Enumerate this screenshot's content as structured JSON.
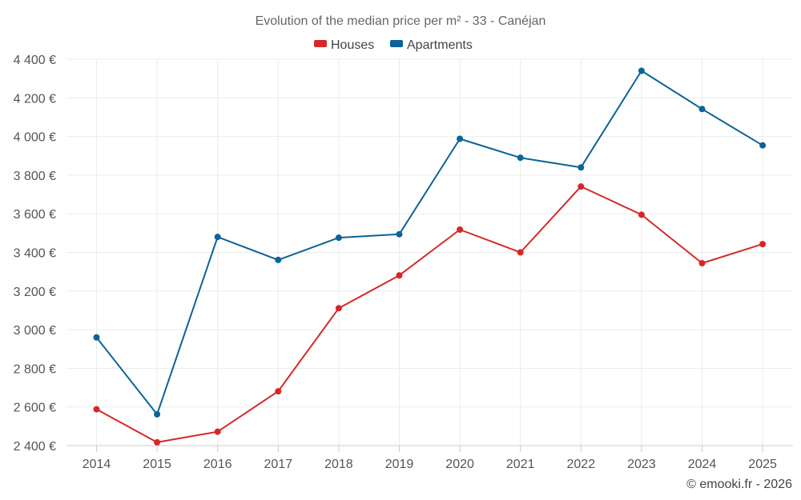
{
  "chart_data": {
    "type": "line",
    "title": "Evolution of the median price per m² - 33 - Canéjan",
    "categories": [
      "2014",
      "2015",
      "2016",
      "2017",
      "2018",
      "2019",
      "2020",
      "2021",
      "2022",
      "2023",
      "2024",
      "2025"
    ],
    "series": [
      {
        "name": "Houses",
        "color": "#d62728",
        "values": [
          2588,
          2417,
          2472,
          2681,
          3111,
          3281,
          3518,
          3400,
          3741,
          3595,
          3344,
          3443
        ]
      },
      {
        "name": "Apartments",
        "color": "#0b6397",
        "values": [
          2960,
          2562,
          3480,
          3361,
          3476,
          3494,
          3988,
          3890,
          3840,
          4340,
          4142,
          3954
        ]
      }
    ],
    "ylim": [
      2400,
      4400
    ],
    "yticks": [
      2400,
      2600,
      2800,
      3000,
      3200,
      3400,
      3600,
      3800,
      4000,
      4200,
      4400
    ],
    "ytick_labels": [
      "2 400 €",
      "2 600 €",
      "2 800 €",
      "3 000 €",
      "3 200 €",
      "3 400 €",
      "3 600 €",
      "3 800 €",
      "4 000 €",
      "4 200 €",
      "4 400 €"
    ],
    "legend_position": "top-center",
    "grid": true
  },
  "credit": "© emooki.fr - 2026"
}
